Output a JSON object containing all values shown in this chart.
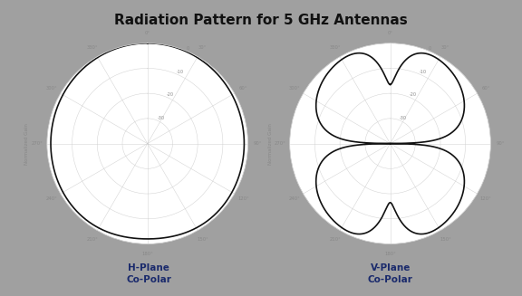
{
  "title": "Radiation Pattern for 5 GHz Antennas",
  "title_fontsize": 11,
  "title_color": "#111111",
  "background_color": "#a0a0a0",
  "panel_color": "#ffffff",
  "label1": "H-Plane\nCo-Polar",
  "label2": "V-Plane\nCo-Polar",
  "label_color": "#1a2a6c",
  "label_fontsize": 7.5,
  "r_ticks_db": [
    -30,
    -20,
    -10,
    0
  ],
  "r_min_db": -40,
  "r_max_db": 0,
  "theta_ticks": [
    0,
    30,
    60,
    90,
    120,
    150,
    180,
    210,
    240,
    270,
    300,
    330
  ],
  "grid_color": "#cccccc",
  "line_color": "#111111",
  "line_width": 1.2,
  "ylabel": "Normalized Gain",
  "ylabel_fontsize": 4.0
}
